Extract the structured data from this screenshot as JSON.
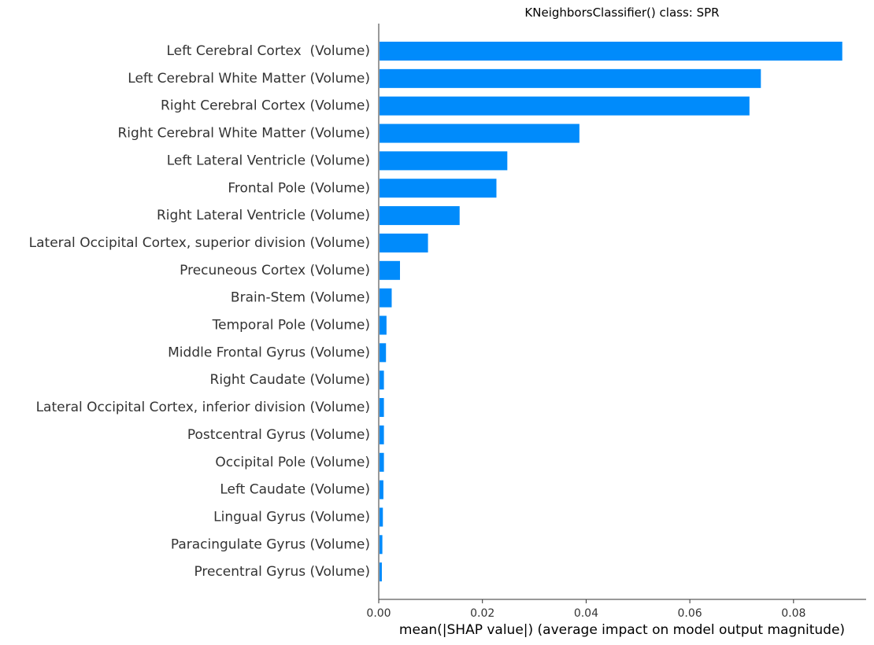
{
  "chart_data": {
    "type": "bar",
    "orientation": "horizontal",
    "title": "KNeighborsClassifier() class: SPR",
    "xlabel": "mean(|SHAP value|) (average impact on model output magnitude)",
    "ylabel": "",
    "xlim": [
      0,
      0.094
    ],
    "xticks": [
      0.0,
      0.02,
      0.04,
      0.06,
      0.08
    ],
    "xtick_labels": [
      "0.00",
      "0.02",
      "0.04",
      "0.06",
      "0.08"
    ],
    "grid": false,
    "bar_color": "#008bfb",
    "categories": [
      "Left Cerebral Cortex  (Volume)",
      "Left Cerebral White Matter (Volume)",
      "Right Cerebral Cortex (Volume)",
      "Right Cerebral White Matter (Volume)",
      "Left Lateral Ventricle (Volume)",
      "Frontal Pole (Volume)",
      "Right Lateral Ventricle (Volume)",
      "Lateral Occipital Cortex, superior division (Volume)",
      "Precuneous Cortex (Volume)",
      "Brain-Stem (Volume)",
      "Temporal Pole (Volume)",
      "Middle Frontal Gyrus (Volume)",
      "Right Caudate (Volume)",
      "Lateral Occipital Cortex, inferior division (Volume)",
      "Postcentral Gyrus (Volume)",
      "Occipital Pole (Volume)",
      "Left Caudate (Volume)",
      "Lingual Gyrus (Volume)",
      "Paracingulate Gyrus (Volume)",
      "Precentral Gyrus (Volume)"
    ],
    "values": [
      0.0894,
      0.0737,
      0.0715,
      0.0387,
      0.0248,
      0.0227,
      0.0156,
      0.0095,
      0.0041,
      0.0025,
      0.0015,
      0.0014,
      0.001,
      0.001,
      0.001,
      0.001,
      0.0009,
      0.0008,
      0.0007,
      0.0006
    ]
  }
}
